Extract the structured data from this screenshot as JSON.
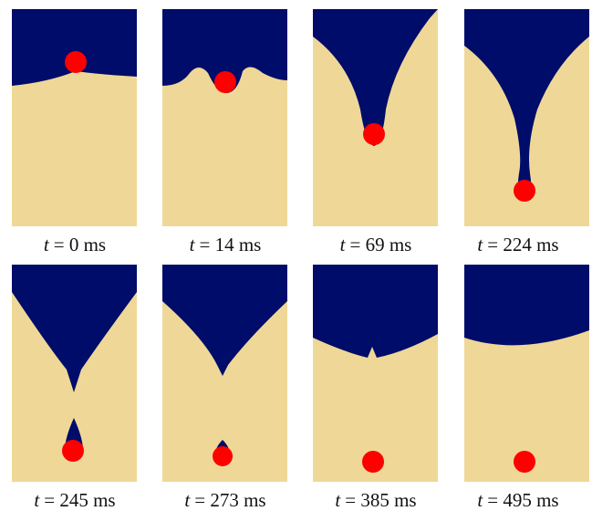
{
  "panels": [
    {
      "variable": "t",
      "caption": "= 0 ms"
    },
    {
      "variable": "t",
      "caption": "= 14 ms"
    },
    {
      "variable": "t",
      "caption": "= 69 ms"
    },
    {
      "variable": "t",
      "caption": "= 224 ms"
    },
    {
      "variable": "t",
      "caption": "= 245 ms"
    },
    {
      "variable": "t",
      "caption": "= 273 ms"
    },
    {
      "variable": "t",
      "caption": "= 385 ms"
    },
    {
      "variable": "t",
      "caption": "= 495 ms"
    }
  ]
}
